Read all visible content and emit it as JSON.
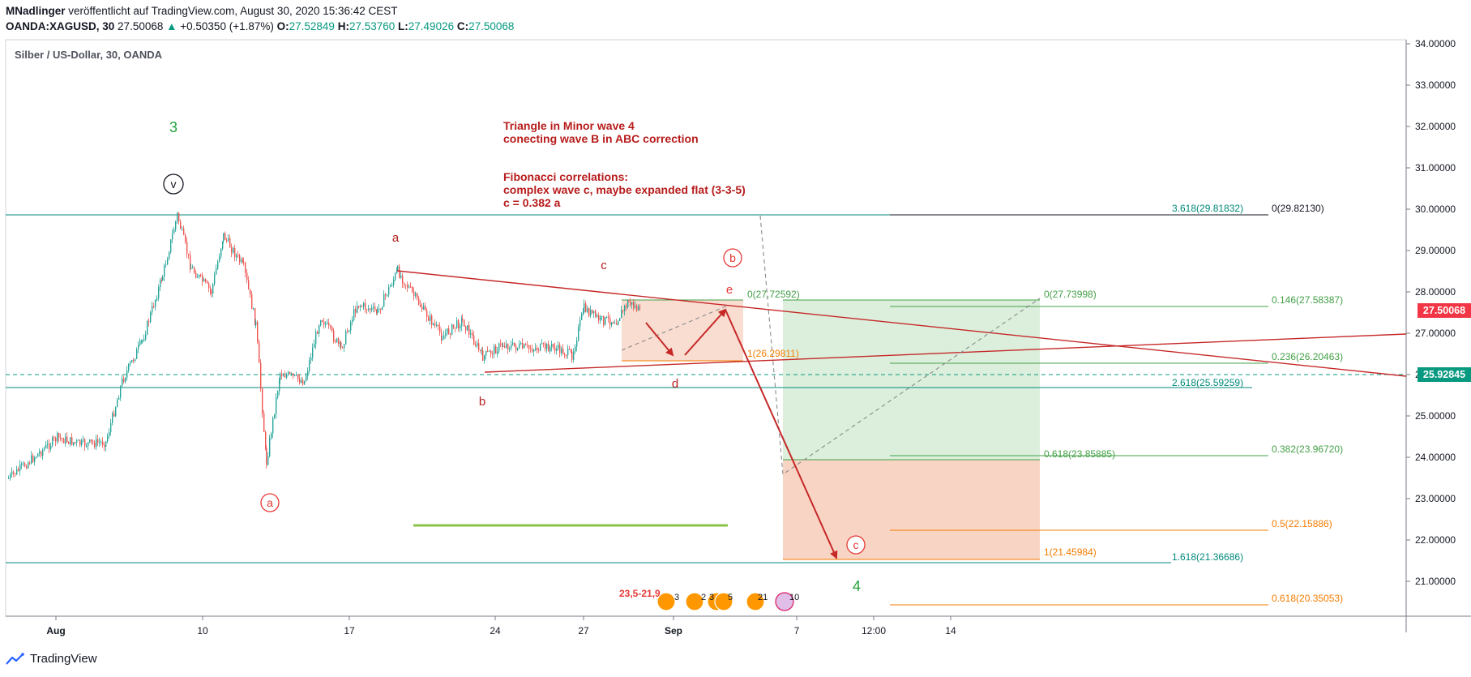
{
  "header": {
    "author": "MNadlinger",
    "published": "veröffentlicht auf TradingView.com, August 30, 2020 15:36:42 CEST",
    "symbol": "OANDA:XAGUSD, 30",
    "last": "27.50068",
    "change_arrow": "▲",
    "change": "+0.50350 (+1.87%)",
    "o_label": "O:",
    "o_value": "27.52849",
    "h_label": "H:",
    "h_value": "27.53760",
    "l_label": "L:",
    "l_value": "27.49026",
    "c_label": "C:",
    "c_value": "27.50068"
  },
  "chart_title": "Silber / US-Dollar, 30, OANDA",
  "price_axis": {
    "ticks": [
      "34.00000",
      "33.00000",
      "32.00000",
      "31.00000",
      "30.00000",
      "29.00000",
      "28.00000",
      "27.00000",
      "26.00000",
      "25.00000",
      "24.00000",
      "23.00000",
      "22.00000",
      "21.00000"
    ],
    "current_price": "27.50068",
    "dashed_level": "25.92845",
    "current_color": "#f23645",
    "dashed_color": "#089981"
  },
  "time_axis": {
    "ticks": [
      "Aug",
      "10",
      "17",
      "24",
      "27",
      "Sep",
      "7",
      "12:00",
      "14"
    ]
  },
  "annotations": {
    "note_line1": "Triangle in Minor wave 4",
    "note_line2": "conecting wave B in ABC correction",
    "note_line3": "Fibonacci correlations:",
    "note_line4": "complex wave c, maybe expanded flat (3-3-5)",
    "note_line5": "c = 0.382 a",
    "wave_3": "3",
    "wave_4": "4",
    "wave_v": "v",
    "wave_a_circle": "a",
    "wave_b_circle": "b",
    "wave_c_circle": "c",
    "tri_a": "a",
    "tri_b": "b",
    "tri_c": "c",
    "tri_d": "d",
    "tri_e": "e",
    "events_range": "23,5-21,9",
    "event_counts": [
      "3",
      "2",
      "3",
      "5",
      "21",
      "10"
    ]
  },
  "fib_labels": {
    "f_3618": "3.618(29.81832)",
    "f_0_top": "0(29.82130)",
    "f_0_small": "0(27.72592)",
    "f_1_small": "1(26.29811)",
    "f_0_mid": "0(27.73998)",
    "f_0146": "0.146(27.58387)",
    "f_0236": "0.236(26.20463)",
    "f_2618": "2.618(25.59259)",
    "f_0618_mid": "0.618(23.85885)",
    "f_0382": "0.382(23.96720)",
    "f_05": "0.5(22.15886)",
    "f_1_mid": "1(21.45984)",
    "f_1618": "1.618(21.36686)",
    "f_0618_low": "0.618(20.35053)"
  },
  "colors": {
    "wave_green": "#21a33a",
    "annotation_red": "#b71c1c",
    "fib_teal": "#00897b",
    "fib_green": "#43a047",
    "fib_orange": "#f57c00",
    "candle_up": "#26a69a",
    "candle_down": "#ef5350"
  },
  "footer": {
    "brand": "TradingView"
  }
}
